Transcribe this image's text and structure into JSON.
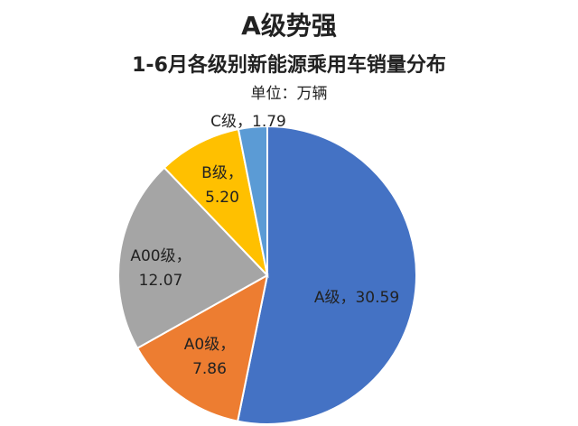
{
  "chart_data": {
    "type": "pie",
    "title": "A级势强",
    "subtitle": "1-6月各级别新能源乘用车销量分布",
    "unit_label": "单位：万辆",
    "categories": [
      "A级",
      "A0级",
      "A00级",
      "B级",
      "C级"
    ],
    "values": [
      30.59,
      7.86,
      12.07,
      5.2,
      1.79
    ],
    "value_labels": [
      "30.59",
      "7.86",
      "12.07",
      "5.20",
      "1.79"
    ],
    "label_separator": "，",
    "colors": [
      "#4472c4",
      "#ed7d31",
      "#a5a5a5",
      "#ffc000",
      "#5b9bd5"
    ]
  }
}
